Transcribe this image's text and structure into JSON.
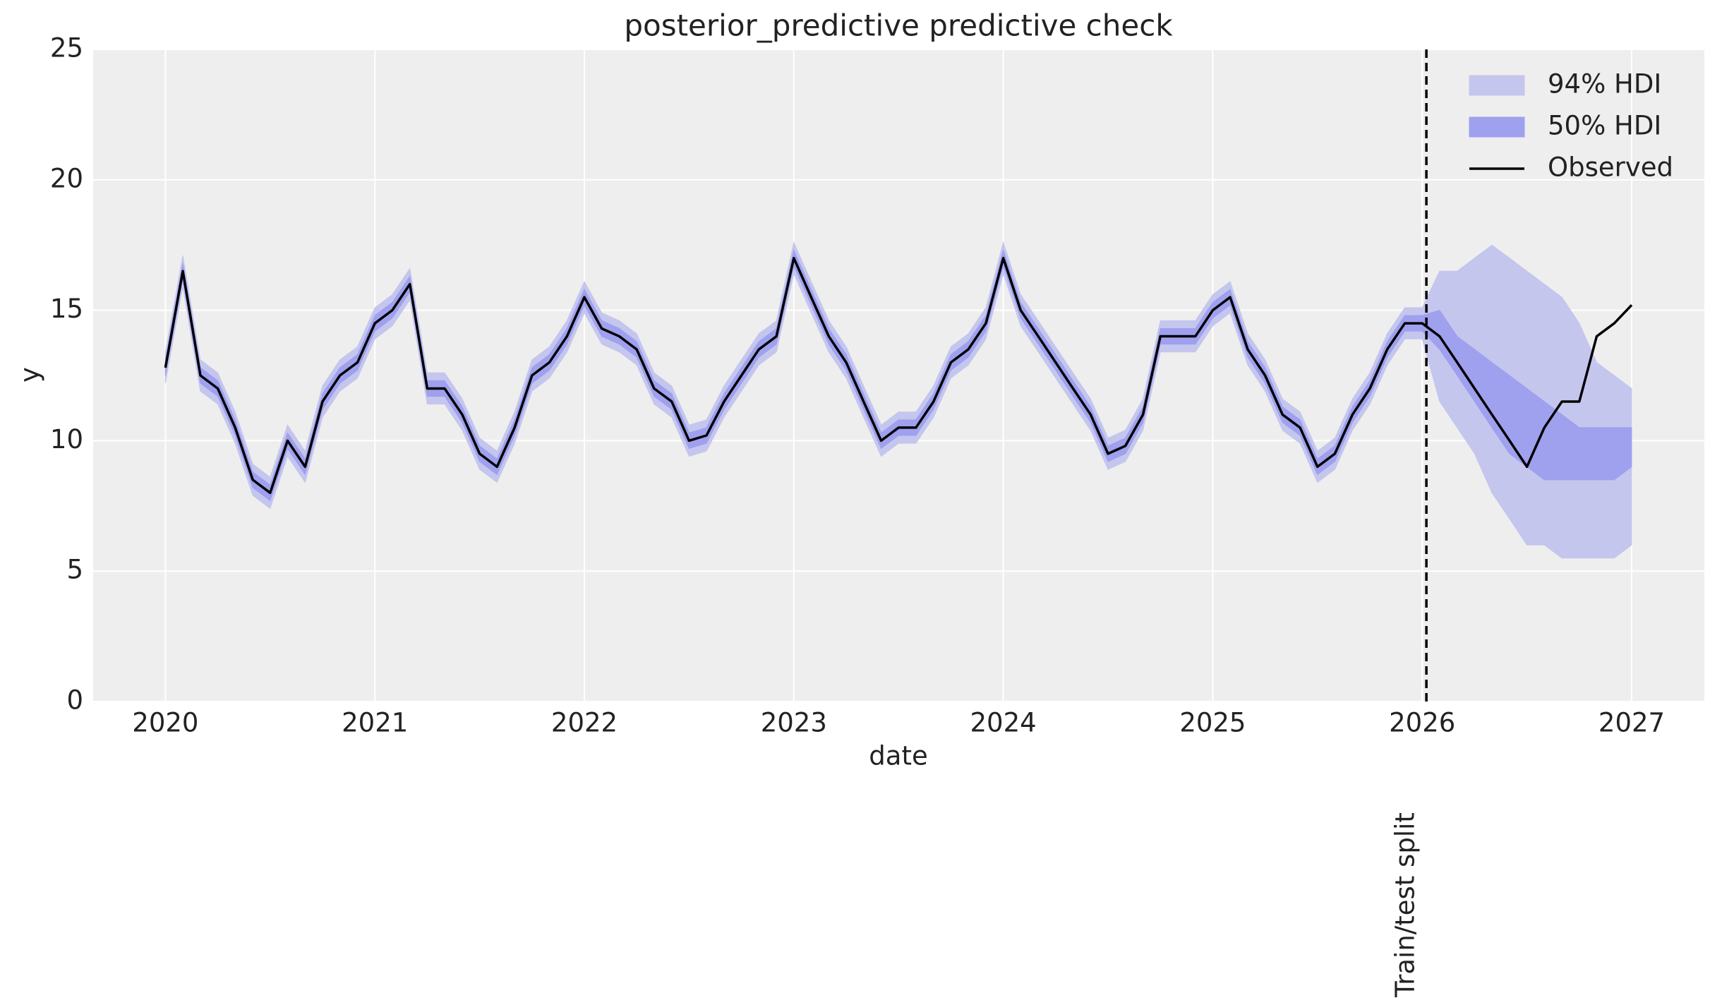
{
  "chart_data": {
    "type": "area_line",
    "title": "posterior_predictive predictive check",
    "xlabel": "date",
    "ylabel": "y",
    "xlim": [
      2019.655,
      2027.347
    ],
    "xticks": [
      2020,
      2021,
      2022,
      2023,
      2024,
      2025,
      2026,
      2027
    ],
    "ylim": [
      0,
      25
    ],
    "yticks": [
      0,
      5,
      10,
      15,
      20,
      25
    ],
    "grid": true,
    "legend": "upper right",
    "split": {
      "x": 2026.02,
      "label": "Train/test split"
    },
    "x": [
      2020,
      2020.083,
      2020.167,
      2020.25,
      2020.333,
      2020.417,
      2020.5,
      2020.583,
      2020.667,
      2020.75,
      2020.833,
      2020.917,
      2021,
      2021.083,
      2021.167,
      2021.25,
      2021.333,
      2021.417,
      2021.5,
      2021.583,
      2021.667,
      2021.75,
      2021.833,
      2021.917,
      2022,
      2022.083,
      2022.167,
      2022.25,
      2022.333,
      2022.417,
      2022.5,
      2022.583,
      2022.667,
      2022.75,
      2022.833,
      2022.917,
      2023,
      2023.083,
      2023.167,
      2023.25,
      2023.333,
      2023.417,
      2023.5,
      2023.583,
      2023.667,
      2023.75,
      2023.833,
      2023.917,
      2024,
      2024.083,
      2024.167,
      2024.25,
      2024.333,
      2024.417,
      2024.5,
      2024.583,
      2024.667,
      2024.75,
      2024.833,
      2024.917,
      2025,
      2025.083,
      2025.167,
      2025.25,
      2025.333,
      2025.417,
      2025.5,
      2025.583,
      2025.667,
      2025.75,
      2025.833,
      2025.917,
      2026,
      2026.083,
      2026.167,
      2026.25,
      2026.333,
      2026.417,
      2026.5,
      2026.583,
      2026.667,
      2026.75,
      2026.833,
      2026.917,
      2027
    ],
    "series": [
      {
        "name": "94% HDI",
        "color": "#c5c6ee",
        "kind": "band",
        "lower": [
          12.2,
          15.9,
          11.9,
          11.4,
          9.9,
          7.9,
          7.4,
          9.4,
          8.4,
          10.9,
          11.9,
          12.4,
          13.9,
          14.4,
          15.4,
          11.4,
          11.4,
          10.4,
          8.9,
          8.4,
          9.9,
          11.9,
          12.4,
          13.4,
          14.9,
          13.7,
          13.4,
          12.9,
          11.4,
          10.9,
          9.4,
          9.6,
          10.9,
          11.9,
          12.9,
          13.4,
          16.4,
          14.9,
          13.4,
          12.4,
          10.9,
          9.4,
          9.9,
          9.9,
          10.9,
          12.4,
          12.9,
          13.9,
          16.4,
          14.4,
          13.4,
          12.4,
          11.4,
          10.4,
          8.9,
          9.2,
          10.4,
          13.4,
          13.4,
          13.4,
          14.4,
          14.9,
          12.9,
          11.9,
          10.4,
          9.9,
          8.4,
          8.9,
          10.4,
          11.4,
          12.9,
          13.9,
          13.9,
          11.5,
          10.5,
          9.5,
          8,
          7,
          6,
          6,
          5.5,
          5.5,
          5.5,
          5.5,
          6
        ],
        "upper": [
          13.4,
          17.1,
          13.1,
          12.6,
          11.1,
          9.1,
          8.6,
          10.6,
          9.6,
          12.1,
          13.1,
          13.6,
          15.1,
          15.6,
          16.6,
          12.6,
          12.6,
          11.6,
          10.1,
          9.6,
          11.1,
          13.1,
          13.6,
          14.6,
          16.1,
          14.9,
          14.6,
          14.1,
          12.6,
          12.1,
          10.6,
          10.8,
          12.1,
          13.1,
          14.1,
          14.6,
          17.6,
          16.1,
          14.6,
          13.6,
          12.1,
          10.6,
          11.1,
          11.1,
          12.1,
          13.6,
          14.1,
          15.1,
          17.6,
          15.6,
          14.6,
          13.6,
          12.6,
          11.6,
          10.1,
          10.4,
          11.6,
          14.6,
          14.6,
          14.6,
          15.6,
          16.1,
          14.1,
          13.1,
          11.6,
          11.1,
          9.6,
          10.1,
          11.6,
          12.6,
          14.1,
          15.1,
          15.1,
          16.5,
          16.5,
          17,
          17.5,
          17,
          16.5,
          16,
          15.5,
          14.5,
          13,
          12.5,
          12
        ]
      },
      {
        "name": "50% HDI",
        "color": "#9fa0ee",
        "kind": "band",
        "lower": [
          12.5,
          16.2,
          12.2,
          11.7,
          10.2,
          8.2,
          7.7,
          9.7,
          8.7,
          11.2,
          12.2,
          12.7,
          14.2,
          14.7,
          15.7,
          11.7,
          11.7,
          10.7,
          9.2,
          8.7,
          10.2,
          12.2,
          12.7,
          13.7,
          15.2,
          14,
          13.7,
          13.2,
          11.7,
          11.2,
          9.7,
          9.9,
          11.2,
          12.2,
          13.2,
          13.7,
          16.7,
          15.2,
          13.7,
          12.7,
          11.2,
          9.7,
          10.2,
          10.2,
          11.2,
          12.7,
          13.2,
          14.2,
          16.7,
          14.7,
          13.7,
          12.7,
          11.7,
          10.7,
          9.2,
          9.5,
          10.7,
          13.7,
          13.7,
          13.7,
          14.7,
          15.2,
          13.2,
          12.2,
          10.7,
          10.2,
          8.7,
          9.2,
          10.7,
          11.7,
          13.2,
          14.2,
          14.2,
          13.5,
          12.5,
          11.5,
          10.5,
          9.5,
          9,
          8.5,
          8.5,
          8.5,
          8.5,
          8.5,
          9
        ],
        "upper": [
          13.1,
          16.8,
          12.8,
          12.3,
          10.8,
          8.8,
          8.3,
          10.3,
          9.3,
          11.8,
          12.8,
          13.3,
          14.8,
          15.3,
          16.3,
          12.3,
          12.3,
          11.3,
          9.8,
          9.3,
          10.8,
          12.8,
          13.3,
          14.3,
          15.8,
          14.6,
          14.3,
          13.8,
          12.3,
          11.8,
          10.3,
          10.5,
          11.8,
          12.8,
          13.8,
          14.3,
          17.3,
          15.8,
          14.3,
          13.3,
          11.8,
          10.3,
          10.8,
          10.8,
          11.8,
          13.3,
          13.8,
          14.8,
          17.3,
          15.3,
          14.3,
          13.3,
          12.3,
          11.3,
          9.8,
          10.1,
          11.3,
          14.3,
          14.3,
          14.3,
          15.3,
          15.8,
          13.8,
          12.8,
          11.3,
          10.8,
          9.3,
          9.8,
          11.3,
          12.3,
          13.8,
          14.8,
          14.8,
          15,
          14,
          13.5,
          13,
          12.5,
          12,
          11.5,
          11,
          10.5,
          10.5,
          10.5,
          10.5
        ]
      },
      {
        "name": "Observed",
        "color": "#000000",
        "kind": "line",
        "values": [
          12.8,
          16.5,
          12.5,
          12,
          10.5,
          8.5,
          8,
          10,
          9,
          11.5,
          12.5,
          13,
          14.5,
          15,
          16,
          12,
          12,
          11,
          9.5,
          9,
          10.5,
          12.5,
          13,
          14,
          15.5,
          14.3,
          14,
          13.5,
          12,
          11.5,
          10,
          10.2,
          11.5,
          12.5,
          13.5,
          14,
          17,
          15.5,
          14,
          13,
          11.5,
          10,
          10.5,
          10.5,
          11.5,
          13,
          13.5,
          14.5,
          17,
          15,
          14,
          13,
          12,
          11,
          9.5,
          9.8,
          11,
          14,
          14,
          14,
          15,
          15.5,
          13.5,
          12.5,
          11,
          10.5,
          9,
          9.5,
          11,
          12,
          13.5,
          14.5,
          14.5,
          14,
          13,
          12,
          11,
          10,
          9,
          10.5,
          11.5,
          11.5,
          14,
          14.5,
          15.2
        ]
      }
    ]
  }
}
